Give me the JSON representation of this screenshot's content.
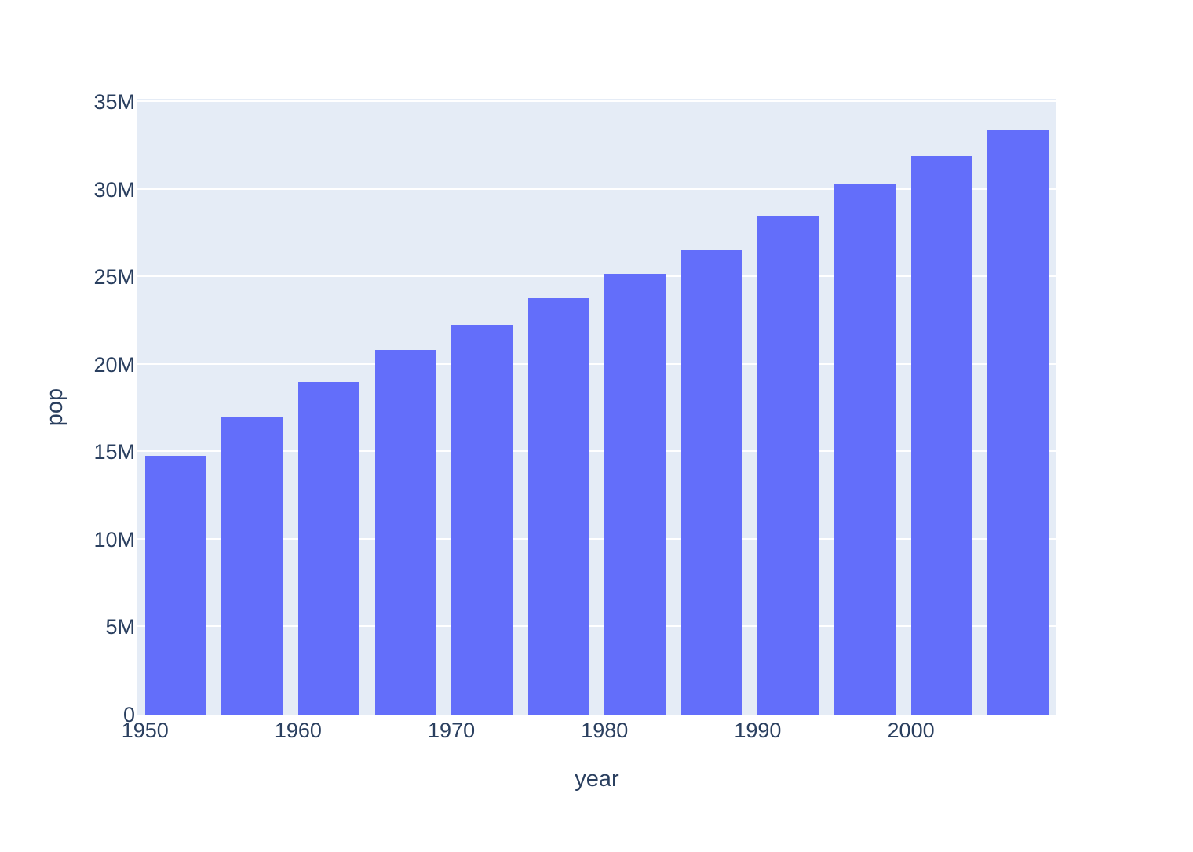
{
  "chart_data": {
    "type": "bar",
    "title": "",
    "xlabel": "year",
    "ylabel": "pop",
    "x": [
      1952,
      1957,
      1962,
      1967,
      1972,
      1977,
      1982,
      1987,
      1992,
      1997,
      2002,
      2007
    ],
    "y": [
      14785584,
      17010154,
      18985849,
      20819767,
      22284500,
      23796400,
      25201900,
      26549700,
      28523502,
      30305843,
      31902268,
      33390141
    ],
    "series_name": "pop",
    "bar_width_x_units": 4,
    "xlim": [
      1949.5,
      2009.5
    ],
    "ylim": [
      0,
      35000000
    ],
    "x_ticks": [
      {
        "value": 1950,
        "label": "1950"
      },
      {
        "value": 1960,
        "label": "1960"
      },
      {
        "value": 1970,
        "label": "1970"
      },
      {
        "value": 1980,
        "label": "1980"
      },
      {
        "value": 1990,
        "label": "1990"
      },
      {
        "value": 2000,
        "label": "2000"
      }
    ],
    "y_ticks": [
      {
        "value": 0,
        "label": "0"
      },
      {
        "value": 5000000,
        "label": "5M"
      },
      {
        "value": 10000000,
        "label": "10M"
      },
      {
        "value": 15000000,
        "label": "15M"
      },
      {
        "value": 20000000,
        "label": "20M"
      },
      {
        "value": 25000000,
        "label": "25M"
      },
      {
        "value": 30000000,
        "label": "30M"
      },
      {
        "value": 35000000,
        "label": "35M"
      }
    ],
    "grid": true,
    "grid_axis": "y",
    "legend_position": "none",
    "colors": {
      "bar": "#636EFA",
      "plot_background": "#E5ECF6",
      "gridline": "#FFFFFF",
      "text": "#2A3F5F",
      "page_background": "#FFFFFF"
    }
  }
}
